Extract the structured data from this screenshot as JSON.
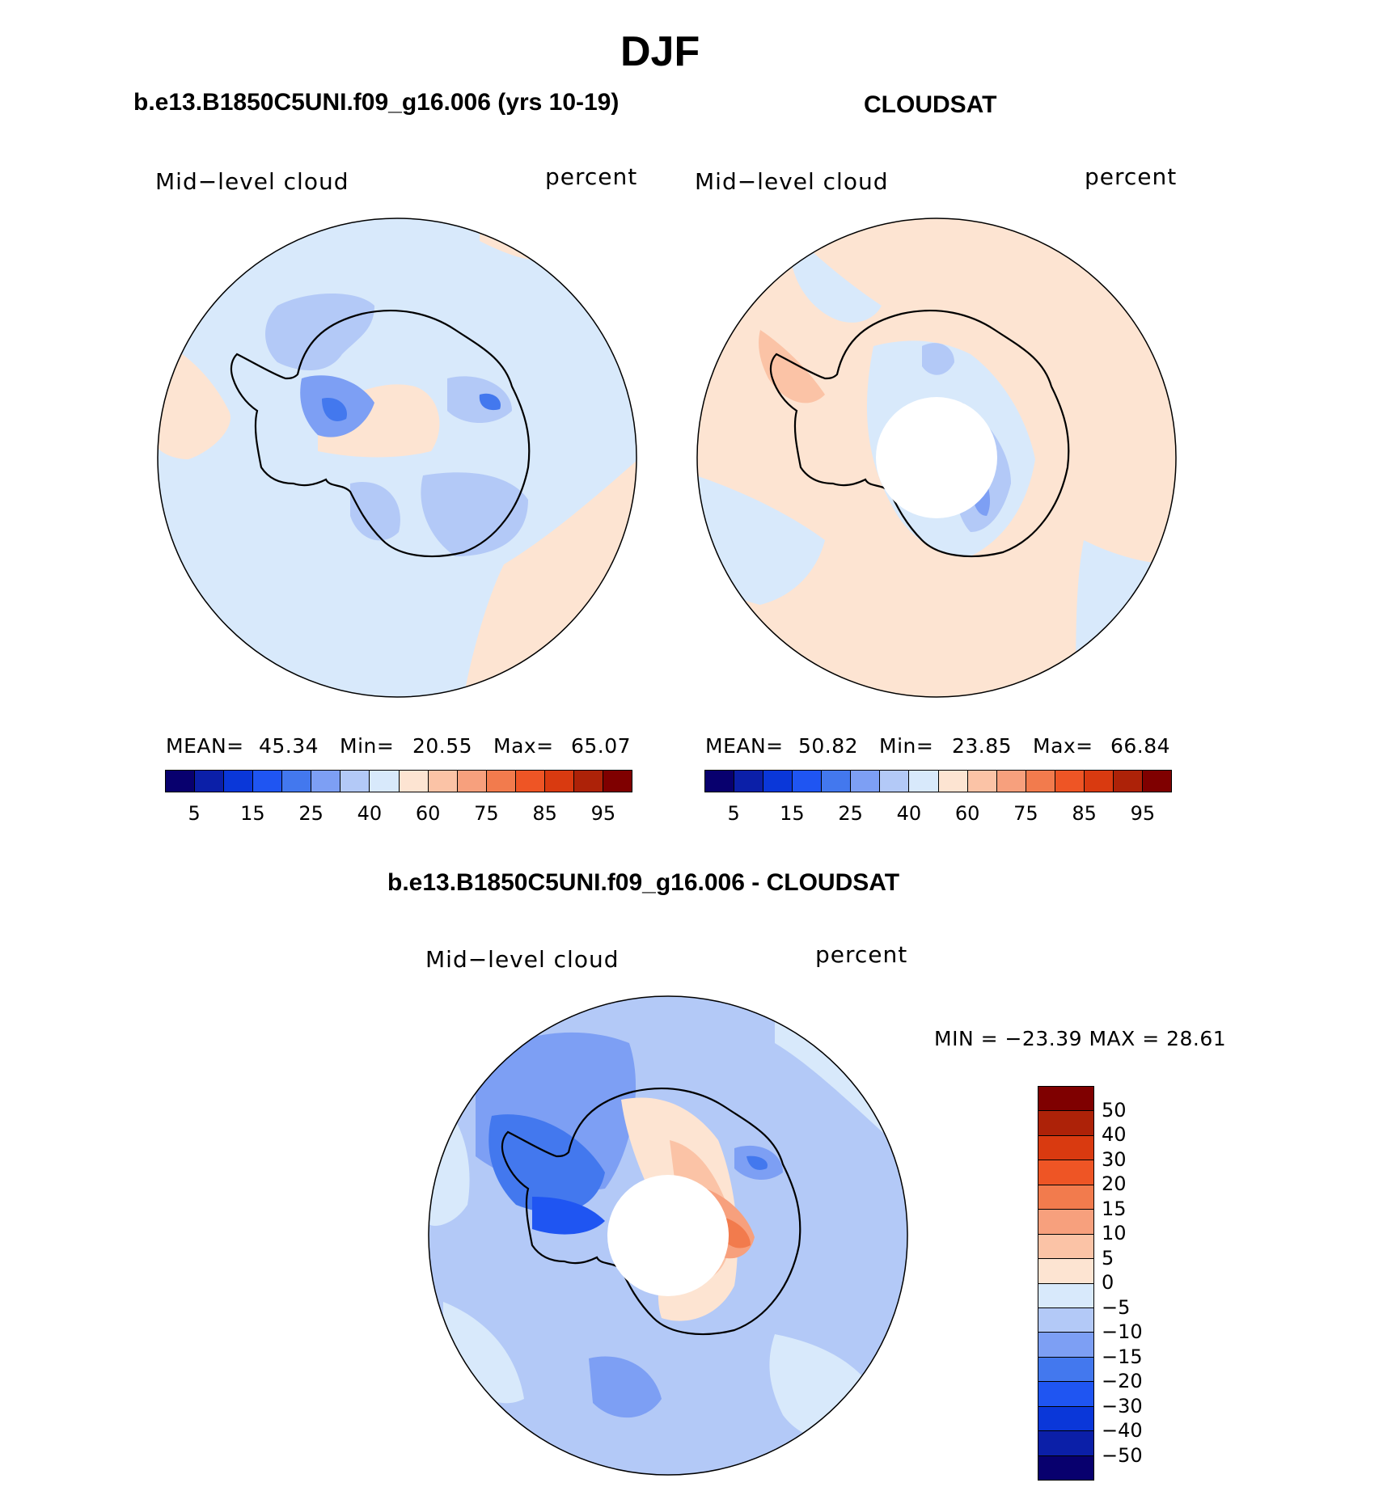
{
  "figure": {
    "title": "DJF"
  },
  "panels": [
    {
      "title": "b.e13.B1850C5UNI.f09_g16.006 (yrs 10-19)",
      "left_label": "Mid−level cloud",
      "right_label": "percent",
      "mean_label": "MEAN=",
      "mean_value": "45.34",
      "min_label": "Min=",
      "min_value": "20.55",
      "max_label": "Max=",
      "max_value": "65.07"
    },
    {
      "title": "CLOUDSAT",
      "left_label": "Mid−level cloud",
      "right_label": "percent",
      "mean_label": "MEAN=",
      "mean_value": "50.82",
      "min_label": "Min=",
      "min_value": "23.85",
      "max_label": "Max=",
      "max_value": "66.84"
    },
    {
      "title": "b.e13.B1850C5UNI.f09_g16.006 - CLOUDSAT",
      "left_label": "Mid−level cloud",
      "right_label": "percent",
      "minmax_text": "MIN = −23.39 MAX =   28.61"
    }
  ],
  "colorbar_abs": {
    "colors": [
      "#08006e",
      "#0b1fa8",
      "#0a37d9",
      "#1f55f2",
      "#4378ee",
      "#7d9ff4",
      "#b3c9f7",
      "#d8e9fb",
      "#fde4d2",
      "#fbc3a6",
      "#f7a07d",
      "#f27b4d",
      "#ee5525",
      "#d93a10",
      "#ad2208",
      "#7f0000"
    ],
    "tick_labels": [
      "5",
      "15",
      "25",
      "40",
      "60",
      "75",
      "85",
      "95"
    ]
  },
  "colorbar_diff": {
    "colors": [
      "#7f0000",
      "#ad2208",
      "#d93a10",
      "#ee5525",
      "#f27b4d",
      "#f7a07d",
      "#fbc3a6",
      "#fde4d2",
      "#d8e9fb",
      "#b3c9f7",
      "#7d9ff4",
      "#4378ee",
      "#1f55f2",
      "#0a37d9",
      "#0b1fa8",
      "#08006e"
    ],
    "tick_labels": [
      "50",
      "40",
      "30",
      "20",
      "15",
      "10",
      "5",
      "0",
      "−5",
      "−10",
      "−15",
      "−20",
      "−30",
      "−40",
      "−50"
    ]
  },
  "map_colors": {
    "neg5": "#d8e9fb",
    "neg10": "#b3c9f7",
    "neg15": "#7d9ff4",
    "neg20": "#4378ee",
    "neg30": "#1f55f2",
    "pos5": "#fde4d2",
    "pos10": "#fbc3a6",
    "pos15": "#f7a07d",
    "pos20": "#f27b4d",
    "pos30": "#ee5525"
  }
}
